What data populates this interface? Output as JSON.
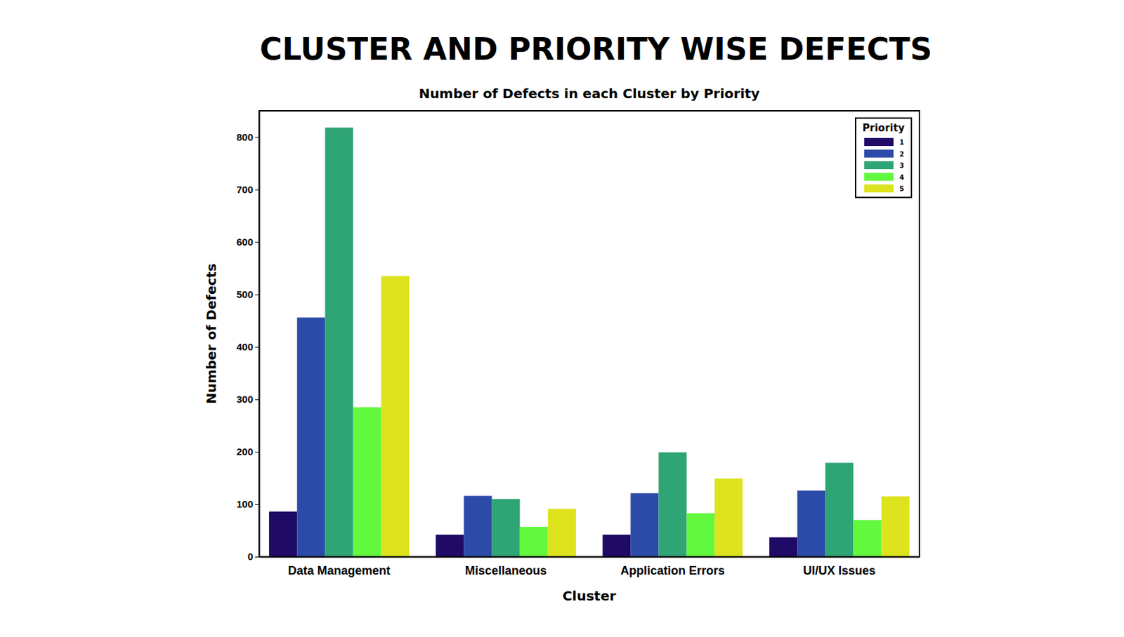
{
  "chart_data": {
    "type": "bar",
    "title": "CLUSTER AND PRIORITY WISE DEFECTS",
    "subtitle": "Number of Defects in each Cluster by Priority",
    "x_label": "Cluster",
    "y_label": "Number of Defects",
    "legend_title": "Priority",
    "categories": [
      "Data Management",
      "Miscellaneous",
      "Application Errors",
      "UI/UX Issues"
    ],
    "series": [
      {
        "name": "1",
        "color": "#1f0a66",
        "values": [
          86,
          42,
          42,
          37
        ]
      },
      {
        "name": "2",
        "color": "#2c4aa8",
        "values": [
          456,
          116,
          121,
          126
        ]
      },
      {
        "name": "3",
        "color": "#2fa475",
        "values": [
          818,
          110,
          199,
          179
        ]
      },
      {
        "name": "4",
        "color": "#62f83e",
        "values": [
          285,
          57,
          83,
          70
        ]
      },
      {
        "name": "5",
        "color": "#dde31c",
        "values": [
          535,
          91,
          149,
          115
        ]
      }
    ],
    "ylim": [
      0,
      850
    ],
    "yticks": [
      0,
      100,
      200,
      300,
      400,
      500,
      600,
      700,
      800
    ],
    "grid": false,
    "legend": "upper right"
  }
}
